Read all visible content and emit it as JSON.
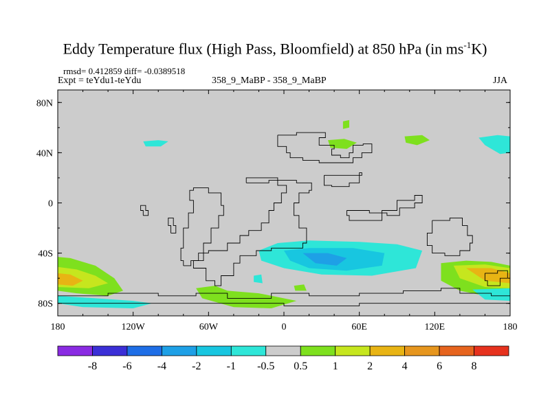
{
  "chart_data": {
    "type": "heatmap",
    "title": "Eddy Temperature flux (High Pass, Bloomfield) at 850 hPa (in ms",
    "title_sup": "-1",
    "title_end": "K)",
    "stats": "rmsd= 0.412859 diff= -0.0389518",
    "expt": "Expt = teYdu1-teYdu",
    "subtitle": "358_9_MaBP - 358_9_MaBP",
    "season": "JJA",
    "x_ticks": [
      "180",
      "120W",
      "60W",
      "0",
      "60E",
      "120E",
      "180"
    ],
    "x_values": [
      -180,
      -120,
      -60,
      0,
      60,
      120,
      180
    ],
    "y_ticks": [
      "80N",
      "40N",
      "0",
      "40S",
      "80S"
    ],
    "y_values": [
      80,
      40,
      0,
      -40,
      -80
    ],
    "xlim": [
      -180,
      180
    ],
    "ylim": [
      -90,
      90
    ],
    "colorbar": {
      "labels": [
        "-8",
        "-6",
        "-4",
        "-2",
        "-1",
        "-0.5",
        "0.5",
        "1",
        "2",
        "4",
        "6",
        "8"
      ],
      "colors": [
        "#8a2be2",
        "#3b2fd6",
        "#1e6ee6",
        "#1ea0e6",
        "#18c6e0",
        "#2ee6d8",
        "#cccccc",
        "#7ee01e",
        "#c6e61e",
        "#e8b414",
        "#e6961e",
        "#e6641e",
        "#e6321e"
      ]
    },
    "regions": [
      {
        "name": "south-pacific-positive",
        "color": "#7ee01e",
        "pts": [
          [
            -180,
            -43
          ],
          [
            -170,
            -44
          ],
          [
            -150,
            -50
          ],
          [
            -135,
            -60
          ],
          [
            -128,
            -70
          ],
          [
            -140,
            -74
          ],
          [
            -165,
            -72
          ],
          [
            -180,
            -70
          ]
        ]
      },
      {
        "name": "south-pacific-yellow",
        "color": "#c6e61e",
        "pts": [
          [
            -180,
            -51
          ],
          [
            -165,
            -53
          ],
          [
            -150,
            -58
          ],
          [
            -140,
            -64
          ],
          [
            -155,
            -68
          ],
          [
            -180,
            -67
          ]
        ]
      },
      {
        "name": "south-pacific-orange",
        "color": "#e8b414",
        "pts": [
          [
            -180,
            -56
          ],
          [
            -170,
            -57
          ],
          [
            -160,
            -62
          ],
          [
            -168,
            -66
          ],
          [
            -180,
            -65
          ]
        ]
      },
      {
        "name": "far-south-pacific-negative",
        "color": "#2ee6d8",
        "pts": [
          [
            -180,
            -74
          ],
          [
            -150,
            -76
          ],
          [
            -120,
            -78
          ],
          [
            -105,
            -80
          ],
          [
            -120,
            -84
          ],
          [
            -160,
            -83
          ],
          [
            -180,
            -80
          ]
        ]
      },
      {
        "name": "south-atlantic-positive",
        "color": "#7ee01e",
        "pts": [
          [
            -70,
            -68
          ],
          [
            -55,
            -66
          ],
          [
            -45,
            -70
          ],
          [
            -20,
            -72
          ],
          [
            10,
            -78
          ],
          [
            -10,
            -84
          ],
          [
            -40,
            -83
          ],
          [
            -65,
            -76
          ]
        ]
      },
      {
        "name": "south-indian-negative",
        "color": "#2ee6d8",
        "pts": [
          [
            -5,
            -32
          ],
          [
            20,
            -30
          ],
          [
            60,
            -31
          ],
          [
            90,
            -33
          ],
          [
            110,
            -38
          ],
          [
            105,
            -52
          ],
          [
            70,
            -58
          ],
          [
            30,
            -57
          ],
          [
            0,
            -52
          ],
          [
            -18,
            -46
          ],
          [
            -20,
            -38
          ]
        ]
      },
      {
        "name": "south-indian-mid-negative",
        "color": "#18c6e0",
        "pts": [
          [
            0,
            -38
          ],
          [
            20,
            -36
          ],
          [
            55,
            -36
          ],
          [
            80,
            -40
          ],
          [
            78,
            -50
          ],
          [
            50,
            -54
          ],
          [
            20,
            -52
          ],
          [
            5,
            -46
          ]
        ]
      },
      {
        "name": "south-indian-core-negative",
        "color": "#1ea0e6",
        "pts": [
          [
            15,
            -40
          ],
          [
            35,
            -40
          ],
          [
            50,
            -44
          ],
          [
            42,
            -50
          ],
          [
            25,
            -48
          ]
        ]
      },
      {
        "name": "south-pacific-east-positive",
        "color": "#7ee01e",
        "pts": [
          [
            125,
            -48
          ],
          [
            145,
            -46
          ],
          [
            165,
            -47
          ],
          [
            180,
            -50
          ],
          [
            180,
            -72
          ],
          [
            165,
            -75
          ],
          [
            140,
            -70
          ],
          [
            125,
            -62
          ]
        ]
      },
      {
        "name": "south-pacific-east-yellow",
        "color": "#c6e61e",
        "pts": [
          [
            135,
            -50
          ],
          [
            160,
            -49
          ],
          [
            180,
            -52
          ],
          [
            180,
            -68
          ],
          [
            160,
            -67
          ],
          [
            140,
            -60
          ]
        ]
      },
      {
        "name": "south-pacific-east-orange",
        "color": "#e8b414",
        "pts": [
          [
            145,
            -52
          ],
          [
            165,
            -52
          ],
          [
            180,
            -56
          ],
          [
            180,
            -64
          ],
          [
            160,
            -62
          ]
        ]
      },
      {
        "name": "south-pacific-east-negative",
        "color": "#2ee6d8",
        "pts": [
          [
            150,
            -69
          ],
          [
            180,
            -68
          ],
          [
            180,
            -78
          ],
          [
            160,
            -77
          ]
        ]
      },
      {
        "name": "north-pacific-negative",
        "color": "#2ee6d8",
        "pts": [
          [
            -112,
            49
          ],
          [
            -100,
            50
          ],
          [
            -92,
            49
          ],
          [
            -98,
            45
          ],
          [
            -110,
            45
          ]
        ]
      },
      {
        "name": "north-atlantic-positive",
        "color": "#7ee01e",
        "pts": [
          [
            35,
            50
          ],
          [
            48,
            51
          ],
          [
            58,
            48
          ],
          [
            50,
            43
          ],
          [
            37,
            44
          ]
        ]
      },
      {
        "name": "europe-positive",
        "color": "#7ee01e",
        "pts": [
          [
            96,
            53
          ],
          [
            110,
            54
          ],
          [
            116,
            50
          ],
          [
            106,
            46
          ],
          [
            97,
            48
          ]
        ]
      },
      {
        "name": "north-pacific-east-negative",
        "color": "#2ee6d8",
        "pts": [
          [
            155,
            52
          ],
          [
            170,
            54
          ],
          [
            180,
            53
          ],
          [
            180,
            40
          ],
          [
            172,
            39
          ],
          [
            160,
            46
          ]
        ]
      },
      {
        "name": "arctic-positive",
        "color": "#7ee01e",
        "pts": [
          [
            47,
            65
          ],
          [
            52,
            66
          ],
          [
            52,
            60
          ],
          [
            47,
            59
          ]
        ]
      },
      {
        "name": "south-midatlantic-negative",
        "color": "#2ee6d8",
        "pts": [
          [
            -24,
            -58
          ],
          [
            -18,
            -57
          ],
          [
            -17,
            -64
          ],
          [
            -24,
            -63
          ]
        ]
      },
      {
        "name": "south-atlantic-small-positive",
        "color": "#7ee01e",
        "pts": [
          [
            8,
            -66
          ],
          [
            16,
            -65
          ],
          [
            18,
            -70
          ],
          [
            9,
            -70
          ]
        ]
      }
    ],
    "outlines": [
      [
        [
          -5,
          54
        ],
        [
          10,
          56
        ],
        [
          25,
          56
        ],
        [
          33,
          52
        ],
        [
          28,
          46
        ],
        [
          40,
          43
        ],
        [
          38,
          38
        ],
        [
          45,
          36
        ],
        [
          52,
          40
        ],
        [
          55,
          46
        ],
        [
          63,
          47
        ],
        [
          70,
          40
        ],
        [
          62,
          36
        ],
        [
          55,
          32
        ],
        [
          42,
          32
        ],
        [
          28,
          34
        ],
        [
          15,
          36
        ],
        [
          5,
          40
        ],
        [
          2,
          45
        ],
        [
          -5,
          50
        ],
        [
          -5,
          54
        ]
      ],
      [
        [
          32,
          22
        ],
        [
          62,
          24
        ],
        [
          60,
          16
        ],
        [
          52,
          13
        ],
        [
          38,
          14
        ],
        [
          32,
          22
        ]
      ],
      [
        [
          -30,
          16
        ],
        [
          -12,
          18
        ],
        [
          -5,
          14
        ],
        [
          2,
          8
        ],
        [
          -2,
          0
        ],
        [
          -8,
          -6
        ],
        [
          -12,
          -16
        ],
        [
          -18,
          -22
        ],
        [
          -28,
          -26
        ],
        [
          -35,
          -32
        ],
        [
          -45,
          -38
        ],
        [
          -60,
          -40
        ],
        [
          -68,
          -46
        ],
        [
          -72,
          -52
        ],
        [
          -62,
          -62
        ],
        [
          -55,
          -66
        ],
        [
          -50,
          -58
        ],
        [
          -40,
          -48
        ],
        [
          -35,
          -42
        ],
        [
          -22,
          -38
        ],
        [
          -10,
          -36
        ],
        [
          15,
          -32
        ],
        [
          18,
          -20
        ],
        [
          12,
          -10
        ],
        [
          8,
          0
        ],
        [
          12,
          8
        ],
        [
          20,
          10
        ],
        [
          22,
          16
        ],
        [
          10,
          18
        ],
        [
          -5,
          20
        ],
        [
          -25,
          20
        ],
        [
          -30,
          16
        ]
      ],
      [
        [
          -80,
          -50
        ],
        [
          -74,
          -46
        ],
        [
          -64,
          -32
        ],
        [
          -58,
          -20
        ],
        [
          -52,
          -10
        ],
        [
          -48,
          -2
        ],
        [
          -50,
          8
        ],
        [
          -60,
          12
        ],
        [
          -72,
          10
        ],
        [
          -75,
          2
        ],
        [
          -72,
          -8
        ],
        [
          -76,
          -20
        ],
        [
          -80,
          -36
        ],
        [
          -82,
          -46
        ],
        [
          -80,
          -50
        ]
      ],
      [
        [
          50,
          -6
        ],
        [
          68,
          -8
        ],
        [
          82,
          -10
        ],
        [
          92,
          -4
        ],
        [
          104,
          0
        ],
        [
          110,
          6
        ],
        [
          104,
          2
        ],
        [
          90,
          -6
        ],
        [
          78,
          -14
        ],
        [
          62,
          -14
        ],
        [
          52,
          -10
        ],
        [
          50,
          -6
        ]
      ],
      [
        [
          118,
          -14
        ],
        [
          132,
          -12
        ],
        [
          142,
          -18
        ],
        [
          146,
          -26
        ],
        [
          150,
          -32
        ],
        [
          148,
          -38
        ],
        [
          140,
          -42
        ],
        [
          128,
          -40
        ],
        [
          118,
          -34
        ],
        [
          114,
          -24
        ],
        [
          118,
          -14
        ]
      ],
      [
        [
          160,
          -56
        ],
        [
          170,
          -54
        ],
        [
          178,
          -60
        ],
        [
          172,
          -66
        ],
        [
          162,
          -62
        ],
        [
          160,
          -56
        ]
      ],
      [
        [
          -180,
          -74
        ],
        [
          -140,
          -72
        ],
        [
          -100,
          -74
        ],
        [
          -70,
          -72
        ],
        [
          -45,
          -76
        ],
        [
          -10,
          -72
        ],
        [
          20,
          -74
        ],
        [
          60,
          -72
        ],
        [
          95,
          -70
        ],
        [
          125,
          -68
        ],
        [
          140,
          -72
        ],
        [
          165,
          -74
        ],
        [
          180,
          -76
        ]
      ],
      [
        [
          -180,
          -80
        ],
        [
          -120,
          -80
        ],
        [
          -60,
          -80
        ],
        [
          0,
          -82
        ],
        [
          60,
          -80
        ],
        [
          120,
          -80
        ],
        [
          180,
          -80
        ]
      ],
      [
        [
          -90,
          -24
        ],
        [
          -86,
          -18
        ],
        [
          -88,
          -12
        ],
        [
          -92,
          -18
        ],
        [
          -90,
          -24
        ]
      ],
      [
        [
          -112,
          -10
        ],
        [
          -108,
          -6
        ],
        [
          -110,
          -2
        ],
        [
          -114,
          -6
        ],
        [
          -112,
          -10
        ]
      ]
    ]
  }
}
